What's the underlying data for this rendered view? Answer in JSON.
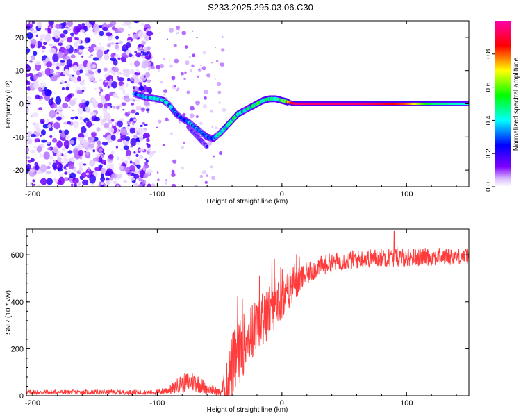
{
  "title": "S233.2025.295.03.06.C30",
  "chart_data": [
    {
      "type": "heatmap",
      "name": "spectrogram",
      "xlabel": "Height of straight line (km)",
      "ylabel": "Frequency (Hz)",
      "xlim": [
        -205,
        150
      ],
      "ylim": [
        -25,
        25
      ],
      "xticks": [
        -200,
        -100,
        0,
        100
      ],
      "yticks": [
        -20,
        -10,
        0,
        10,
        20
      ],
      "colorbar": {
        "label": "Normalized spectral amplitude",
        "range": [
          0,
          1
        ],
        "ticks": [
          "0.0",
          "0.2",
          "0.4",
          "0.6",
          "0.8"
        ],
        "colors": [
          "#ffffff",
          "#7f00ff",
          "#0000ff",
          "#00ffff",
          "#00ff00",
          "#ffff00",
          "#ff0000",
          "#ff00aa"
        ]
      },
      "noise_region_x": [
        -205,
        -115
      ],
      "ridge_x": [
        -118,
        -110,
        -100,
        -95,
        -90,
        -85,
        -80,
        -75,
        -70,
        -65,
        -60,
        -55,
        -50,
        -45,
        -40,
        -35,
        -30,
        -25,
        -20,
        -15,
        -10,
        -5,
        0,
        5,
        10,
        20,
        40,
        60,
        80,
        100,
        120,
        150
      ],
      "ridge_y": [
        3,
        2,
        1.5,
        1,
        -0.5,
        -3,
        -4.5,
        -5.5,
        -7,
        -8.5,
        -10,
        -10.5,
        -9,
        -7,
        -5,
        -3,
        -2,
        -1,
        0,
        1,
        1.5,
        1.5,
        1,
        0.5,
        0,
        0,
        0,
        0,
        0,
        0,
        0,
        0
      ],
      "ridge_amp": [
        0.3,
        0.35,
        0.4,
        0.4,
        0.35,
        0.3,
        0.3,
        0.35,
        0.35,
        0.3,
        0.3,
        0.35,
        0.4,
        0.45,
        0.45,
        0.45,
        0.4,
        0.45,
        0.5,
        0.5,
        0.45,
        0.45,
        0.5,
        0.7,
        0.95,
        0.95,
        0.95,
        0.95,
        0.9,
        0.8,
        0.5,
        0.4
      ],
      "branch_x": [
        -75,
        -70,
        -65,
        -60
      ],
      "branch_y": [
        -7,
        -9,
        -11,
        -13
      ],
      "branch_amp": [
        0.25,
        0.3,
        0.3,
        0.25
      ]
    },
    {
      "type": "line",
      "name": "snr",
      "xlabel": "Height of straight line (km)",
      "ylabel": "SNR (10 * v/v)",
      "xlim": [
        -205,
        150
      ],
      "ylim": [
        0,
        710
      ],
      "xticks": [
        -200,
        -100,
        0,
        100
      ],
      "yticks": [
        0,
        200,
        400,
        600
      ],
      "color": "#ff3b3b",
      "trend_x": [
        -205,
        -100,
        -90,
        -80,
        -70,
        -60,
        -50,
        -45,
        -40,
        -30,
        -20,
        -10,
        0,
        10,
        20,
        30,
        40,
        50,
        60,
        80,
        100,
        150
      ],
      "trend_y": [
        15,
        15,
        25,
        55,
        60,
        30,
        15,
        40,
        120,
        230,
        300,
        360,
        420,
        470,
        520,
        550,
        570,
        575,
        580,
        590,
        590,
        595
      ],
      "noise_amplitude": [
        10,
        10,
        20,
        40,
        45,
        25,
        15,
        80,
        150,
        130,
        120,
        110,
        90,
        70,
        50,
        45,
        40,
        40,
        40,
        40,
        40,
        35
      ]
    }
  ]
}
